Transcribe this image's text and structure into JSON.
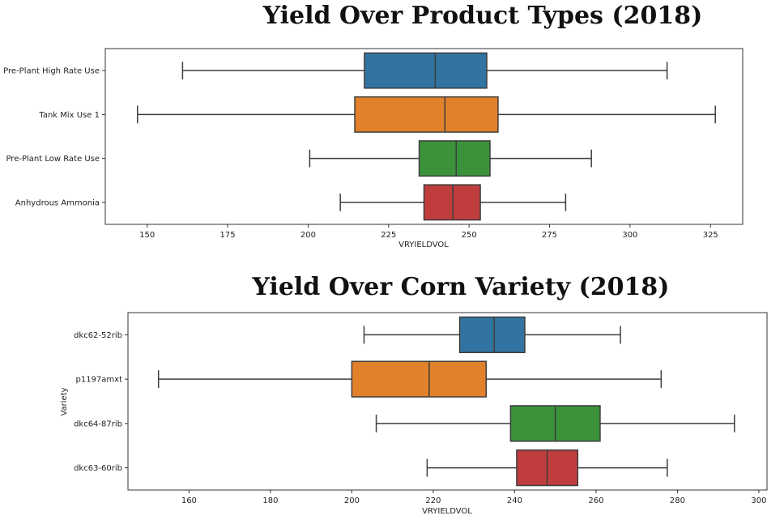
{
  "chart_data": [
    {
      "type": "boxplot",
      "title": "Yield Over Product Types (2018)",
      "xlabel": "VRYIELDVOL",
      "ylabel": "",
      "xlim": [
        137,
        335
      ],
      "xticks": [
        150,
        175,
        200,
        225,
        250,
        275,
        300,
        325
      ],
      "categories": [
        "Pre-Plant High Rate Use",
        "Tank Mix Use 1",
        "Pre-Plant Low Rate Use",
        "Anhydrous Ammonia"
      ],
      "boxes": [
        {
          "whisker_low": 161,
          "q1": 217.5,
          "median": 239.5,
          "q3": 255.5,
          "whisker_high": 311.5,
          "color": "#3274a1"
        },
        {
          "whisker_low": 147,
          "q1": 214.5,
          "median": 242.5,
          "q3": 259,
          "whisker_high": 326.5,
          "color": "#e1812c"
        },
        {
          "whisker_low": 200.5,
          "q1": 234.5,
          "median": 246,
          "q3": 256.5,
          "whisker_high": 288,
          "color": "#3a923a"
        },
        {
          "whisker_low": 210,
          "q1": 236,
          "median": 245,
          "q3": 253.5,
          "whisker_high": 280,
          "color": "#c03d3e"
        }
      ]
    },
    {
      "type": "boxplot",
      "title": "Yield Over Corn Variety (2018)",
      "xlabel": "VRYIELDVOL",
      "ylabel": "Variety",
      "xlim": [
        145,
        302
      ],
      "xticks": [
        160,
        180,
        200,
        220,
        240,
        260,
        280,
        300
      ],
      "categories": [
        "dkc62-52rib",
        "p1197amxt",
        "dkc64-87rib",
        "dkc63-60rib"
      ],
      "boxes": [
        {
          "whisker_low": 203,
          "q1": 226.5,
          "median": 235,
          "q3": 242.5,
          "whisker_high": 266,
          "color": "#3274a1"
        },
        {
          "whisker_low": 152.5,
          "q1": 200,
          "median": 219,
          "q3": 233,
          "whisker_high": 276,
          "color": "#e1812c"
        },
        {
          "whisker_low": 206,
          "q1": 239,
          "median": 250,
          "q3": 261,
          "whisker_high": 294,
          "color": "#3a923a"
        },
        {
          "whisker_low": 218.5,
          "q1": 240.5,
          "median": 248,
          "q3": 255.5,
          "whisker_high": 277.5,
          "color": "#c03d3e"
        }
      ]
    }
  ]
}
